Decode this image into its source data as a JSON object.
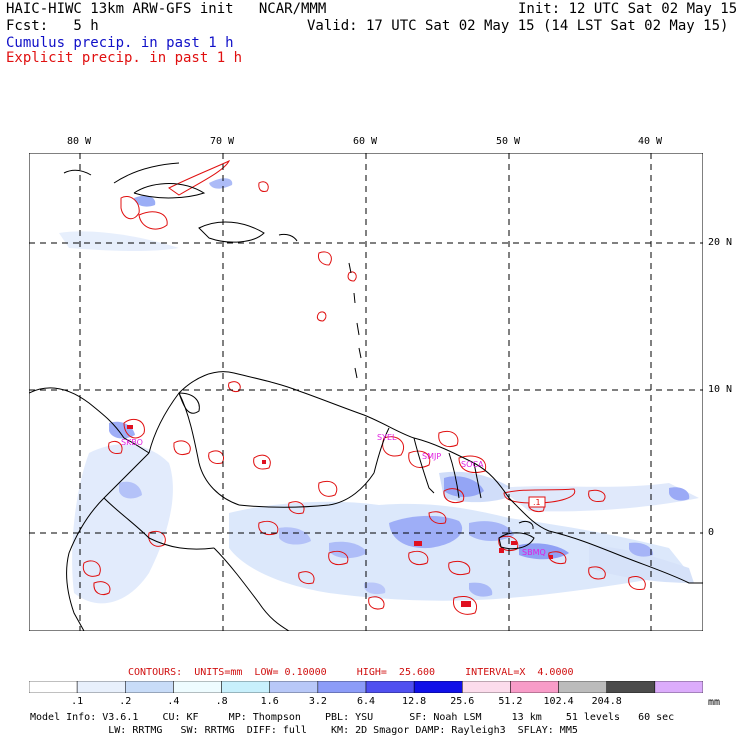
{
  "header": {
    "model_title": "HAIC-HIWC 13km ARW-GFS init   NCAR/MMM",
    "init_time": "Init: 12 UTC Sat 02 May 15",
    "forecast": "Fcst:   5 h",
    "valid_time": "Valid: 17 UTC Sat 02 May 15 (14 LST Sat 02 May 15)",
    "cumulus_label": "Cumulus precip. in past 1 h",
    "explicit_label": "Explicit precip. in past 1 h"
  },
  "map": {
    "lon_labels": [
      "80 W",
      "70 W",
      "60 W",
      "50 W",
      "40 W"
    ],
    "lat_labels": [
      "20 N",
      "10 N",
      "0"
    ],
    "station_labels": [
      "SKBO",
      "SYEL",
      "SMJP",
      "SOCA",
      "SBMQ"
    ],
    "contour_box_label": ".1"
  },
  "contour_info": {
    "text": "CONTOURS:  UNITS=mm  LOW= 0.10000     HIGH=  25.600     INTERVAL=X  4.0000"
  },
  "colorbar": {
    "labels": [
      ".1",
      ".2",
      ".4",
      ".8",
      "1.6",
      "3.2",
      "6.4",
      "12.8",
      "25.6",
      "51.2",
      "102.4",
      "204.8"
    ],
    "unit": "mm",
    "colors": [
      "#ffffff",
      "#e8f0fc",
      "#c8dcf8",
      "#eefcff",
      "#c8f0fc",
      "#b8c8f8",
      "#8c9cf8",
      "#5050f0",
      "#1010e8",
      "#fcdcec",
      "#f89cc8",
      "#bcbcbc",
      "#4c4c4c",
      "#dcacfc"
    ]
  },
  "footer": {
    "line1": "Model Info: V3.6.1    CU: KF     MP: Thompson    PBL: YSU      SF: Noah LSM     13 km    51 levels   60 sec",
    "line2": "             LW: RRTMG   SW: RRTMG  DIFF: full    KM: 2D Smagor DAMP: Rayleigh3  SFLAY: MM5"
  },
  "colors": {
    "cumulus_text": "#1010c8",
    "explicit_text": "#e01010",
    "explicit_contour": "#e01010",
    "station_label": "#e020e0"
  }
}
